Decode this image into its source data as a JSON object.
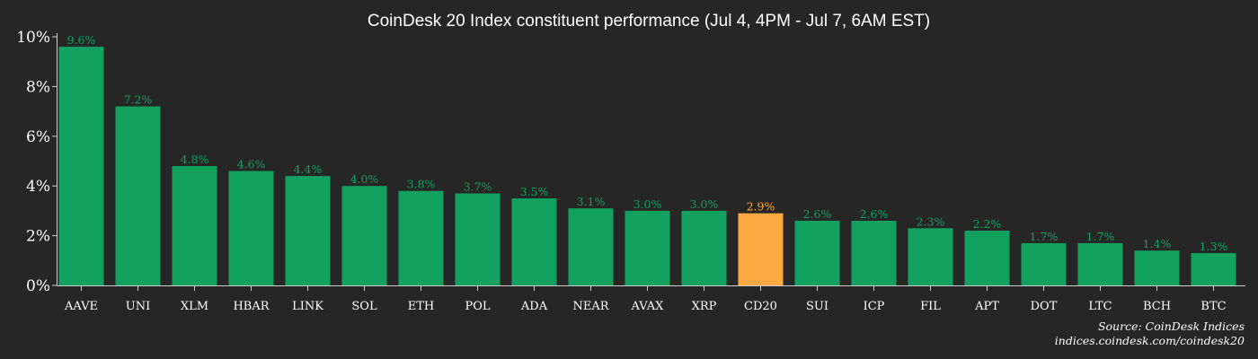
{
  "chart_data": {
    "type": "bar",
    "title": "CoinDesk 20 Index constituent performance (Jul 4, 4PM - Jul 7, 6AM EST)",
    "categories": [
      "AAVE",
      "UNI",
      "XLM",
      "HBAR",
      "LINK",
      "SOL",
      "ETH",
      "POL",
      "ADA",
      "NEAR",
      "AVAX",
      "XRP",
      "CD20",
      "SUI",
      "ICP",
      "FIL",
      "APT",
      "DOT",
      "LTC",
      "BCH",
      "BTC"
    ],
    "values": [
      9.6,
      7.2,
      4.8,
      4.6,
      4.4,
      4.0,
      3.8,
      3.7,
      3.5,
      3.1,
      3.0,
      3.0,
      2.9,
      2.6,
      2.6,
      2.3,
      2.2,
      1.7,
      1.7,
      1.4,
      1.3
    ],
    "value_labels": [
      "9.6%",
      "7.2%",
      "4.8%",
      "4.6%",
      "4.4%",
      "4.0%",
      "3.8%",
      "3.7%",
      "3.5%",
      "3.1%",
      "3.0%",
      "3.0%",
      "2.9%",
      "2.6%",
      "2.6%",
      "2.3%",
      "2.2%",
      "1.7%",
      "1.7%",
      "1.4%",
      "1.3%"
    ],
    "highlight_category": "CD20",
    "yticks": [
      0,
      2,
      4,
      6,
      8,
      10
    ],
    "ytick_labels": [
      "0%",
      "2%",
      "4%",
      "6%",
      "8%",
      "10%"
    ],
    "ylim": [
      0,
      10
    ],
    "xlabel": "",
    "ylabel": "",
    "grid": false,
    "colors": {
      "background": "#262626",
      "bar": "#12a15e",
      "highlight": "#ffaa40",
      "label": "#12a15e",
      "highlight_label": "#ffaa40",
      "text": "#ffffff",
      "axis": "#cfcfcf"
    }
  },
  "source": {
    "line1": "Source: CoinDesk Indices",
    "line2": "indices.coindesk.com/coindesk20"
  }
}
